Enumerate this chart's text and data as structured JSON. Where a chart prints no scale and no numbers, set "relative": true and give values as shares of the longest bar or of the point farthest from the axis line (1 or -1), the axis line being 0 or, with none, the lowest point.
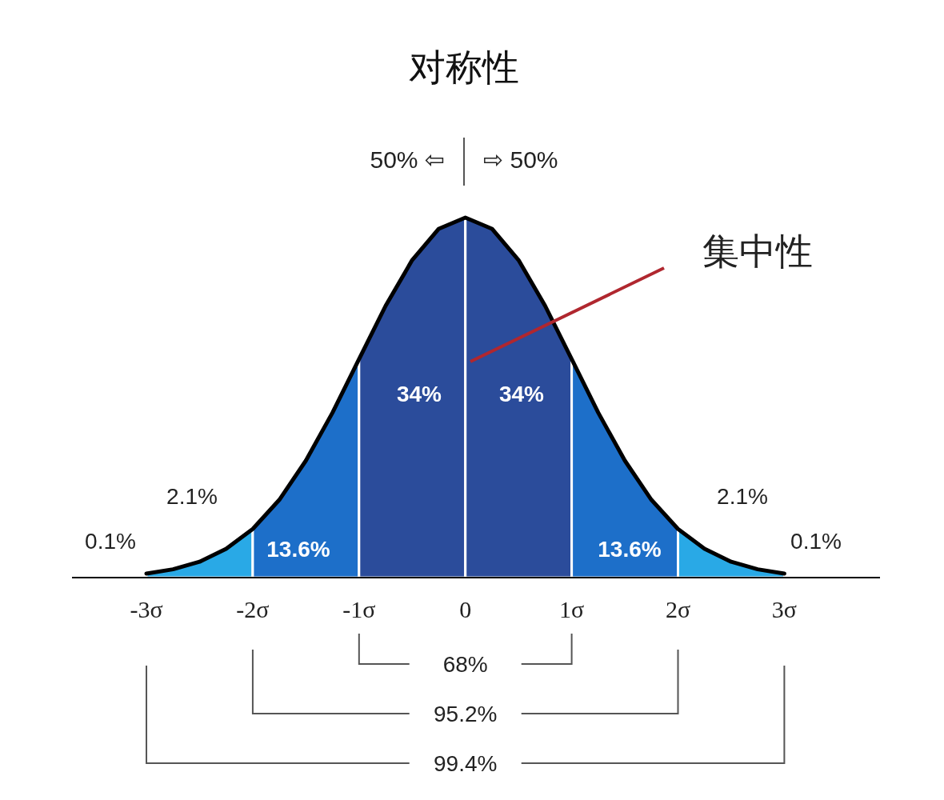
{
  "chart_data": {
    "type": "area",
    "title": "对称性",
    "relative": true,
    "xlim": [
      -3.7,
      3.9
    ],
    "xticks": [
      {
        "value": -3,
        "label": "-3σ"
      },
      {
        "value": -2,
        "label": "-2σ"
      },
      {
        "value": -1,
        "label": "-1σ"
      },
      0,
      {
        "value": 1,
        "label": "1σ"
      },
      {
        "value": 2,
        "label": "2σ"
      },
      {
        "value": 3,
        "label": "3σ"
      }
    ],
    "series": [
      {
        "color": "#29a9e6",
        "x": [
          -3,
          -2.75,
          -2.5,
          -2.25,
          -2
        ],
        "values": [
          0.011,
          0.023,
          0.044,
          0.08,
          0.135
        ]
      },
      {
        "color": "#1d6fc9",
        "x": [
          -2,
          -1.75,
          -1.5,
          -1.25,
          -1
        ],
        "values": [
          0.135,
          0.216,
          0.325,
          0.458,
          0.607
        ]
      },
      {
        "color": "#2b4c9b",
        "x": [
          -1,
          -0.75,
          -0.5,
          -0.25,
          0
        ],
        "values": [
          0.607,
          0.755,
          0.882,
          0.969,
          1
        ]
      },
      {
        "color": "#2b4c9b",
        "x": [
          0,
          0.25,
          0.5,
          0.75,
          1
        ],
        "values": [
          1,
          0.969,
          0.882,
          0.755,
          0.607
        ]
      },
      {
        "color": "#1d6fc9",
        "x": [
          1,
          1.25,
          1.5,
          1.75,
          2
        ],
        "values": [
          0.607,
          0.458,
          0.325,
          0.216,
          0.135
        ]
      },
      {
        "color": "#29a9e6",
        "x": [
          2,
          2.25,
          2.5,
          2.75,
          3
        ],
        "values": [
          0.135,
          0.08,
          0.044,
          0.023,
          0.011
        ]
      },
      {
        "type": "line",
        "color": "#000000",
        "x": [
          -3,
          -2.75,
          -2.5,
          -2.25,
          -2,
          -1.75,
          -1.5,
          -1.25,
          -1,
          -0.75,
          -0.5,
          -0.25,
          0,
          0.25,
          0.5,
          0.75,
          1,
          1.25,
          1.5,
          1.75,
          2,
          2.25,
          2.5,
          2.75,
          3
        ],
        "values": [
          0.011,
          0.023,
          0.044,
          0.08,
          0.135,
          0.216,
          0.325,
          0.458,
          0.607,
          0.755,
          0.882,
          0.969,
          1,
          0.969,
          0.882,
          0.755,
          0.607,
          0.458,
          0.325,
          0.216,
          0.135,
          0.08,
          0.044,
          0.023,
          0.011
        ]
      }
    ],
    "annotations": [
      "50% ⇦",
      "⇨ 50%",
      "集中性",
      "34%",
      "34%",
      "13.6%",
      "13.6%",
      "2.1%",
      "2.1%",
      "0.1%",
      "0.1%",
      "68%",
      "95.2%",
      "99.4%"
    ]
  }
}
